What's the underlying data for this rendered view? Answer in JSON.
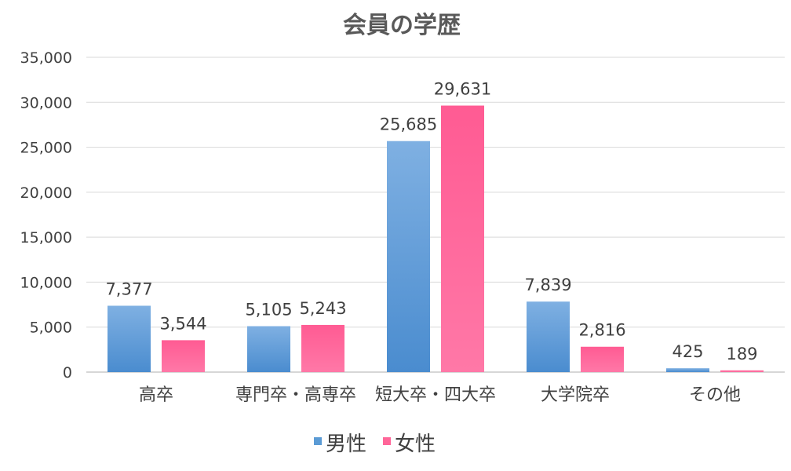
{
  "chart_data": {
    "type": "bar",
    "title": "会員の学歴",
    "categories": [
      "高卒",
      "専門卒・高専卒",
      "短大卒・四大卒",
      "大学院卒",
      "その他"
    ],
    "series": [
      {
        "name": "男性",
        "values": [
          7377,
          5105,
          25685,
          7839,
          425
        ]
      },
      {
        "name": "女性",
        "values": [
          3544,
          5243,
          29631,
          2816,
          189
        ]
      }
    ],
    "data_labels": [
      [
        "7,377",
        "5,105",
        "25,685",
        "7,839",
        "425"
      ],
      [
        "3,544",
        "5,243",
        "29,631",
        "2,816",
        "189"
      ]
    ],
    "y_ticks": [
      "0",
      "5,000",
      "10,000",
      "15,000",
      "20,000",
      "25,000",
      "30,000",
      "35,000"
    ],
    "ylim": [
      0,
      35000
    ],
    "grid": true,
    "legend": "bottom",
    "colors": {
      "男性": "#5b9bd5",
      "女性": "#ff6699"
    }
  }
}
